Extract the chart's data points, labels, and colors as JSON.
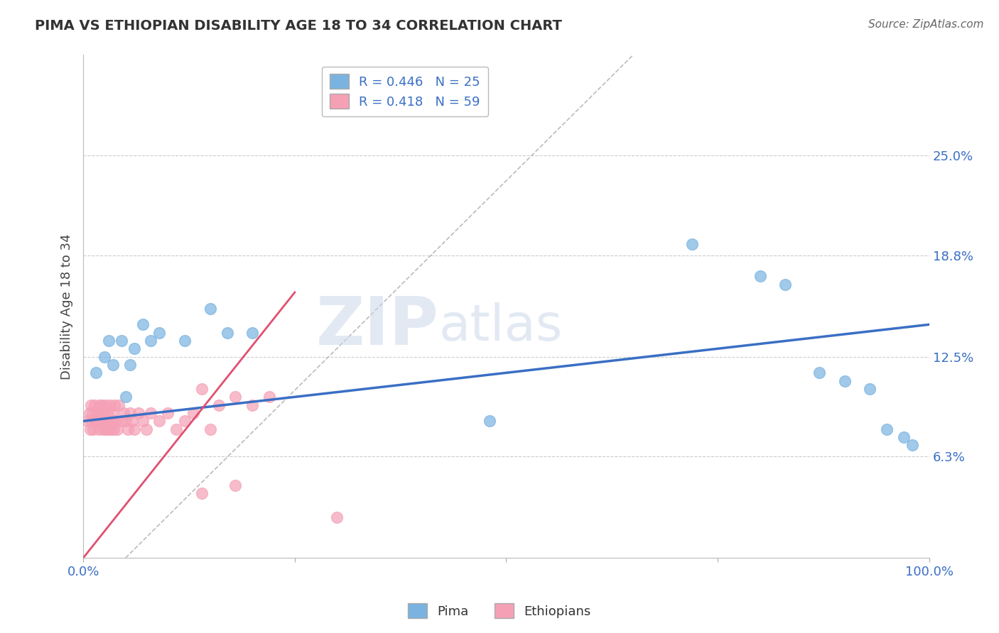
{
  "title": "PIMA VS ETHIOPIAN DISABILITY AGE 18 TO 34 CORRELATION CHART",
  "source_text": "Source: ZipAtlas.com",
  "ylabel": "Disability Age 18 to 34",
  "xlim": [
    0.0,
    100.0
  ],
  "ylim": [
    0.0,
    31.25
  ],
  "yticks": [
    6.3,
    12.5,
    18.8,
    25.0
  ],
  "ytick_labels": [
    "6.3%",
    "12.5%",
    "18.8%",
    "25.0%"
  ],
  "xticks": [
    0.0,
    25.0,
    50.0,
    75.0,
    100.0
  ],
  "xtick_labels": [
    "0.0%",
    "",
    "",
    "",
    "100.0%"
  ],
  "pima_color": "#7ab3e0",
  "pima_line_color": "#3a6fc4",
  "ethiopian_color": "#f5a0b5",
  "ethiopian_line_color": "#e05070",
  "pima_R": "0.446",
  "pima_N": "25",
  "ethiopian_R": "0.418",
  "ethiopian_N": "59",
  "legend_label_pima": "Pima",
  "legend_label_ethiopian": "Ethiopians",
  "watermark_zip": "ZIP",
  "watermark_atlas": "atlas",
  "pima_x": [
    1.5,
    2.5,
    3.0,
    3.5,
    4.5,
    5.0,
    5.5,
    6.0,
    7.0,
    8.0,
    9.0,
    12.0,
    15.0,
    17.0,
    20.0,
    48.0,
    72.0,
    80.0,
    83.0,
    87.0,
    90.0,
    93.0,
    95.0,
    97.0,
    98.0
  ],
  "pima_y": [
    11.5,
    12.5,
    13.5,
    12.0,
    13.5,
    10.0,
    12.0,
    13.0,
    14.5,
    13.5,
    14.0,
    13.5,
    15.5,
    14.0,
    14.0,
    8.5,
    19.5,
    17.5,
    17.0,
    11.5,
    11.0,
    10.5,
    8.0,
    7.5,
    7.0
  ],
  "ethiopian_x": [
    0.5,
    0.7,
    0.8,
    0.9,
    1.0,
    1.1,
    1.2,
    1.3,
    1.5,
    1.6,
    1.7,
    1.8,
    1.9,
    2.0,
    2.1,
    2.2,
    2.3,
    2.4,
    2.5,
    2.6,
    2.7,
    2.8,
    2.9,
    3.0,
    3.1,
    3.2,
    3.3,
    3.4,
    3.5,
    3.6,
    3.7,
    3.8,
    4.0,
    4.2,
    4.5,
    4.8,
    5.0,
    5.3,
    5.5,
    5.8,
    6.0,
    6.5,
    7.0,
    7.5,
    8.0,
    9.0,
    10.0,
    11.0,
    12.0,
    13.0,
    14.0,
    15.0,
    16.0,
    18.0,
    20.0,
    22.0,
    14.0,
    18.0,
    30.0
  ],
  "ethiopian_y": [
    8.5,
    9.0,
    8.0,
    9.5,
    8.5,
    9.0,
    8.0,
    9.5,
    8.5,
    9.0,
    8.5,
    8.0,
    9.5,
    8.5,
    9.0,
    9.5,
    8.0,
    9.0,
    8.5,
    9.5,
    8.0,
    9.0,
    8.5,
    8.0,
    9.5,
    8.5,
    8.0,
    9.0,
    8.5,
    8.0,
    9.5,
    8.5,
    8.0,
    9.5,
    8.5,
    9.0,
    8.5,
    8.0,
    9.0,
    8.5,
    8.0,
    9.0,
    8.5,
    8.0,
    9.0,
    8.5,
    9.0,
    8.0,
    8.5,
    9.0,
    10.5,
    8.0,
    9.5,
    10.0,
    9.5,
    10.0,
    4.0,
    4.5,
    2.5
  ],
  "pima_line_x0": 0.0,
  "pima_line_y0": 8.5,
  "pima_line_x1": 100.0,
  "pima_line_y1": 14.5,
  "ethiopian_line_x0": 0.0,
  "ethiopian_line_y0": 0.0,
  "ethiopian_line_x1": 25.0,
  "ethiopian_line_y1": 16.5,
  "diag_line_x0": 5.0,
  "diag_line_y0": 0.0,
  "diag_line_x1": 65.0,
  "diag_line_y1": 31.25
}
